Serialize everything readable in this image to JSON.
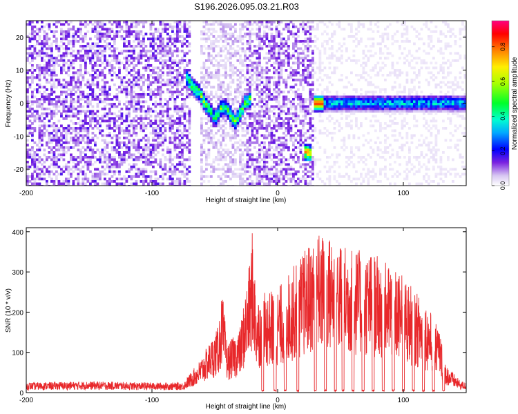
{
  "title": "S196.2026.095.03.21.R03",
  "chart_data": [
    {
      "type": "heatmap",
      "name": "spectrogram",
      "xlabel": "Height of straight line (km)",
      "ylabel": "Frequency (Hz)",
      "xlim": [
        -200,
        150
      ],
      "ylim": [
        -25,
        25
      ],
      "xticks": [
        -200,
        -100,
        0,
        100
      ],
      "yticks": [
        -20,
        -10,
        0,
        10,
        20
      ],
      "colorbar": {
        "label": "Normalized spectral amplitude",
        "range": [
          0.0,
          0.95
        ],
        "ticks": [
          0.0,
          0.2,
          0.4,
          0.6,
          0.8
        ]
      },
      "features": [
        {
          "kind": "noise",
          "x_range": [
            -200,
            -70
          ],
          "y_range": [
            -25,
            25
          ],
          "amplitude": 0.15
        },
        {
          "kind": "noise",
          "x_range": [
            -62,
            -25
          ],
          "y_range": [
            -25,
            25
          ],
          "amplitude": 0.08
        },
        {
          "kind": "noise",
          "x_range": [
            -25,
            28
          ],
          "y_range": [
            -25,
            25
          ],
          "amplitude": 0.14
        },
        {
          "kind": "noise",
          "x_range": [
            28,
            150
          ],
          "y_range": [
            -25,
            25
          ],
          "amplitude": 0.03
        },
        {
          "kind": "track",
          "points": [
            [
              -73,
              8
            ],
            [
              -68,
              5
            ],
            [
              -62,
              3
            ],
            [
              -58,
              0
            ],
            [
              -54,
              -2
            ],
            [
              -50,
              -5
            ],
            [
              -46,
              -2
            ],
            [
              -42,
              -1
            ],
            [
              -38,
              -3
            ],
            [
              -34,
              -6
            ],
            [
              -30,
              -3
            ],
            [
              -26,
              0
            ],
            [
              -22,
              1
            ]
          ],
          "amplitude": 0.55,
          "width_hz": 2
        },
        {
          "kind": "track",
          "points": [
            [
              22,
              -15
            ],
            [
              26,
              -15
            ]
          ],
          "amplitude": 0.8,
          "width_hz": 2
        },
        {
          "kind": "line",
          "x_range": [
            28,
            150
          ],
          "frequency": 0,
          "amplitude": 0.35,
          "width_hz": 2,
          "peak_at": 32,
          "peak_amplitude": 0.9
        }
      ]
    },
    {
      "type": "line",
      "name": "snr",
      "xlabel": "Height of straight line (km)",
      "ylabel": "SNR (10 * v/v)",
      "xlim": [
        -200,
        150
      ],
      "ylim": [
        0,
        410
      ],
      "xticks": [
        -200,
        -100,
        0,
        100
      ],
      "yticks": [
        0,
        100,
        200,
        300,
        400
      ],
      "color": "#e8282b",
      "envelope": [
        {
          "x": -200,
          "y": 25
        },
        {
          "x": -150,
          "y": 28
        },
        {
          "x": -100,
          "y": 25
        },
        {
          "x": -75,
          "y": 25
        },
        {
          "x": -62,
          "y": 80
        },
        {
          "x": -48,
          "y": 160
        },
        {
          "x": -44,
          "y": 250
        },
        {
          "x": -40,
          "y": 120
        },
        {
          "x": -30,
          "y": 160
        },
        {
          "x": -22,
          "y": 330
        },
        {
          "x": -20,
          "y": 410
        },
        {
          "x": -17,
          "y": 240
        },
        {
          "x": 0,
          "y": 260
        },
        {
          "x": 18,
          "y": 340
        },
        {
          "x": 32,
          "y": 400
        },
        {
          "x": 42,
          "y": 390
        },
        {
          "x": 60,
          "y": 360
        },
        {
          "x": 80,
          "y": 340
        },
        {
          "x": 100,
          "y": 290
        },
        {
          "x": 118,
          "y": 220
        },
        {
          "x": 128,
          "y": 170
        },
        {
          "x": 134,
          "y": 70
        },
        {
          "x": 145,
          "y": 30
        },
        {
          "x": 150,
          "y": 25
        }
      ],
      "dropouts_x": [
        -12,
        -2,
        6,
        16,
        30,
        38,
        46,
        52,
        60,
        68,
        76,
        84,
        92,
        100,
        108,
        116,
        124,
        132
      ]
    }
  ]
}
